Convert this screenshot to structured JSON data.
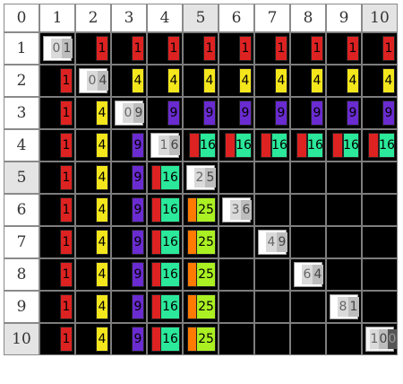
{
  "corner_label": "0",
  "col_headers": [
    "1",
    "2",
    "3",
    "4",
    "5",
    "6",
    "7",
    "8",
    "9",
    "10"
  ],
  "row_headers": [
    "1",
    "2",
    "3",
    "4",
    "5",
    "6",
    "7",
    "8",
    "9",
    "10"
  ],
  "shaded_headers": [
    5,
    10
  ],
  "factors": [
    {
      "n": 1,
      "product": "1",
      "color": "#dd2222"
    },
    {
      "n": 2,
      "product": "4",
      "color": "#f4e61c"
    },
    {
      "n": 3,
      "product": "9",
      "color": "#6a2bd0"
    },
    {
      "n": 4,
      "product": "16",
      "color": "#2be89a"
    },
    {
      "n": 5,
      "product": "25",
      "color": "#aaf022"
    },
    {
      "n": 6,
      "product": "36",
      "color": "#cccccc"
    },
    {
      "n": 7,
      "product": "49",
      "color": "#cccccc"
    },
    {
      "n": 8,
      "product": "64",
      "color": "#cccccc"
    },
    {
      "n": 9,
      "product": "81",
      "color": "#cccccc"
    },
    {
      "n": 10,
      "product": "100",
      "color": "#cccccc"
    }
  ],
  "diagonal": [
    "01",
    "04",
    "09",
    "16",
    "25",
    "36",
    "49",
    "64",
    "81",
    "100"
  ],
  "five_label": "25",
  "four_row_labels": "16"
}
